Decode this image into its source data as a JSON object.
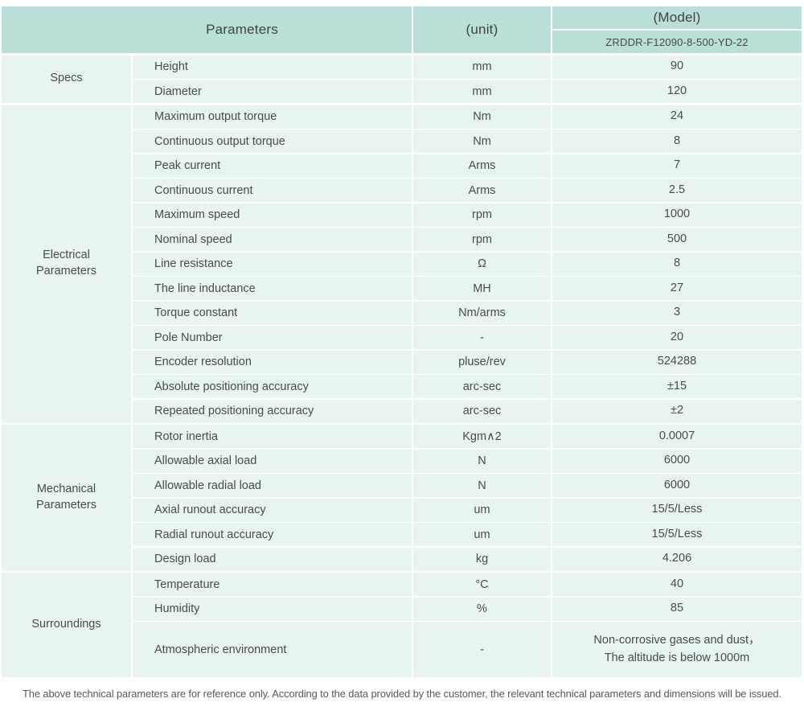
{
  "header": {
    "parameters_label": "Parameters",
    "unit_label": "(unit)",
    "model_label": "(Model)",
    "model_value": "ZRDDR-F12090-8-500-YD-22"
  },
  "sections": [
    {
      "name": "Specs",
      "rows": [
        {
          "param": "Height",
          "unit": "mm",
          "value": "90"
        },
        {
          "param": "Diameter",
          "unit": "mm",
          "value": "120"
        }
      ]
    },
    {
      "name": "Electrical\nParameters",
      "rows": [
        {
          "param": "Maximum output torque",
          "unit": "Nm",
          "value": "24"
        },
        {
          "param": "Continuous output torque",
          "unit": "Nm",
          "value": "8"
        },
        {
          "param": "Peak current",
          "unit": "Arms",
          "value": "7"
        },
        {
          "param": "Continuous current",
          "unit": "Arms",
          "value": "2.5"
        },
        {
          "param": "Maximum speed",
          "unit": "rpm",
          "value": "1000"
        },
        {
          "param": "Nominal speed",
          "unit": "rpm",
          "value": "500"
        },
        {
          "param": "Line resistance",
          "unit": "Ω",
          "value": "8"
        },
        {
          "param": "The line inductance",
          "unit": "MH",
          "value": "27"
        },
        {
          "param": "Torque constant",
          "unit": "Nm/arms",
          "value": "3"
        },
        {
          "param": "Pole Number",
          "unit": "-",
          "value": "20"
        },
        {
          "param": "Encoder resolution",
          "unit": "pluse/rev",
          "value": "524288"
        },
        {
          "param": "Absolute positioning accuracy",
          "unit": "arc-sec",
          "value": "±15"
        },
        {
          "param": "Repeated positioning accuracy",
          "unit": "arc-sec",
          "value": "±2"
        }
      ]
    },
    {
      "name": "Mechanical\nParameters",
      "rows": [
        {
          "param": "Rotor inertia",
          "unit": "Kgm∧2",
          "value": "0.0007"
        },
        {
          "param": "Allowable axial load",
          "unit": "N",
          "value": "6000"
        },
        {
          "param": "Allowable radial load",
          "unit": "N",
          "value": "6000"
        },
        {
          "param": "Axial runout accuracy",
          "unit": "um",
          "value": "15/5/Less"
        },
        {
          "param": "Radial runout accuracy",
          "unit": "um",
          "value": "15/5/Less"
        },
        {
          "param": "Design load",
          "unit": "kg",
          "value": "4.206"
        }
      ]
    },
    {
      "name": "Surroundings",
      "rows": [
        {
          "param": "Temperature",
          "unit": "°C",
          "value": "40"
        },
        {
          "param": "Humidity",
          "unit": "%",
          "value": "85"
        },
        {
          "param": "Atmospheric environment",
          "unit": "-",
          "value": "Non-corrosive gases and dust，\nThe altitude is below 1000m"
        }
      ]
    }
  ],
  "footer_note": "The above technical parameters are for reference only. According to the data provided by the customer, the relevant technical parameters and dimensions will be issued.",
  "colors": {
    "header_bg": "#badfd8",
    "cell_bg": "#e8f4f1",
    "text": "#4a4b4b",
    "footer_text": "#585858"
  }
}
